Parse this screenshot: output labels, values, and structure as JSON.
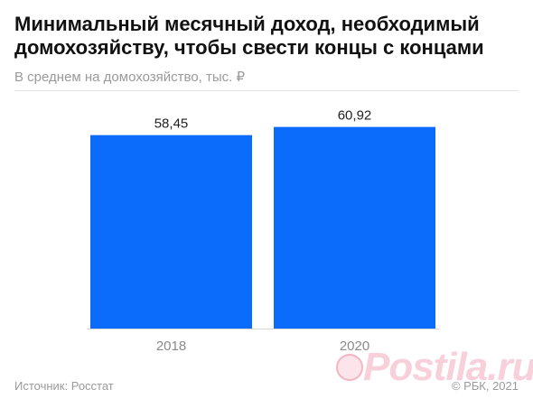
{
  "header": {
    "title": "Минимальный месячный доход, необходимый домохозяйству, чтобы свести концы с концами",
    "subtitle": "В среднем на домохозяйство, тыс. ₽"
  },
  "footer": {
    "source": "Источник: Росстат",
    "copyright": "© РБК, 2021"
  },
  "watermark": {
    "text": "Postila.ru"
  },
  "colors": {
    "bar": "#0b6cfb",
    "label": "#222222",
    "tick": "#8a8a8a",
    "baseline": "#d8d8d8"
  },
  "chart_data": {
    "type": "bar",
    "title": "Минимальный месячный доход, необходимый домохозяйству, чтобы свести концы с концами",
    "subtitle": "В среднем на домохозяйство, тыс. ₽",
    "categories": [
      "2018",
      "2020"
    ],
    "values": [
      58.45,
      60.92
    ],
    "value_labels": [
      "58,45",
      "60,92"
    ],
    "xlabel": "",
    "ylabel": "",
    "ylim": [
      0,
      72
    ],
    "grid": false,
    "legend": "none"
  }
}
